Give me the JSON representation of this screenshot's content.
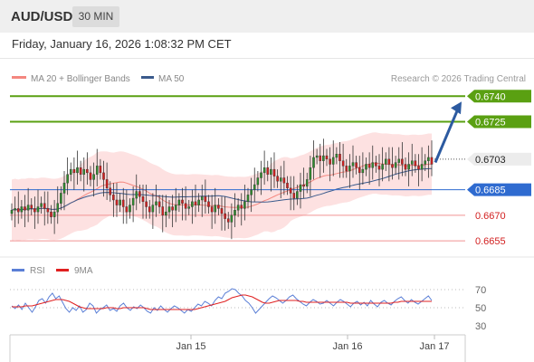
{
  "header": {
    "symbol": "AUD/USD",
    "timeframe": "30 MIN"
  },
  "datetime": "Friday, January 16, 2026 1:08:32 PM CET",
  "legend": {
    "ma20": {
      "label": "MA 20 + Bollinger Bands",
      "color": "#f4877f"
    },
    "ma50": {
      "label": "MA 50",
      "color": "#3a5a8c"
    }
  },
  "copyright": "Research © 2026 Trading Central",
  "rsi_legend": {
    "rsi": {
      "label": "RSI",
      "color": "#5b7fd6"
    },
    "ma9": {
      "label": "9MA",
      "color": "#e02020"
    }
  },
  "colors": {
    "up": "#2e8b2e",
    "down": "#d21f1f",
    "resistance": "#5aa012",
    "support": "#2f6bd0",
    "support_light": "#f19393",
    "arrow": "#2c5aa0",
    "band_fill": "#fde1e1"
  },
  "chart_data": [
    {
      "type": "candlestick",
      "ylim": [
        0.6646,
        0.6746
      ],
      "x_tick_labels": [
        "Jan 15",
        "Jan 16",
        "Jan 17"
      ],
      "price_levels": [
        {
          "value": 0.674,
          "label": "0.6740",
          "style": "resistance"
        },
        {
          "value": 0.6725,
          "label": "0.6725",
          "style": "resistance"
        },
        {
          "value": 0.6703,
          "label": "0.6703",
          "style": "current"
        },
        {
          "value": 0.6685,
          "label": "0.6685",
          "style": "support"
        },
        {
          "value": 0.667,
          "label": "0.6670",
          "style": "support_light"
        },
        {
          "value": 0.6655,
          "label": "0.6655",
          "style": "support_light"
        }
      ],
      "ohlc_close": [
        0.6673,
        0.6674,
        0.6672,
        0.6675,
        0.6673,
        0.6676,
        0.6674,
        0.6672,
        0.6675,
        0.6677,
        0.6674,
        0.6672,
        0.6669,
        0.6672,
        0.6677,
        0.6683,
        0.6689,
        0.6694,
        0.6697,
        0.6695,
        0.6698,
        0.6694,
        0.6697,
        0.6695,
        0.6691,
        0.6694,
        0.6699,
        0.6695,
        0.6691,
        0.6686,
        0.6682,
        0.6679,
        0.6676,
        0.6679,
        0.6675,
        0.6672,
        0.6676,
        0.668,
        0.6684,
        0.6681,
        0.6678,
        0.6675,
        0.6672,
        0.6676,
        0.6678,
        0.6675,
        0.667,
        0.6672,
        0.6675,
        0.6673,
        0.6676,
        0.6679,
        0.6677,
        0.6674,
        0.6675,
        0.6678,
        0.6676,
        0.6679,
        0.6681,
        0.6678,
        0.6675,
        0.6672,
        0.6676,
        0.6674,
        0.6671,
        0.6668,
        0.6666,
        0.667,
        0.6673,
        0.6676,
        0.6674,
        0.6678,
        0.6682,
        0.6685,
        0.6688,
        0.6692,
        0.6695,
        0.6698,
        0.6694,
        0.6697,
        0.6693,
        0.669,
        0.6692,
        0.6689,
        0.6686,
        0.6683,
        0.668,
        0.6684,
        0.6688,
        0.6687,
        0.6691,
        0.6698,
        0.6704,
        0.6705,
        0.6702,
        0.6705,
        0.6703,
        0.67,
        0.6704,
        0.6706,
        0.6702,
        0.6699,
        0.6696,
        0.6699,
        0.6701,
        0.6698,
        0.6695,
        0.6697,
        0.67,
        0.6698,
        0.6701,
        0.6699,
        0.6697,
        0.67,
        0.6703,
        0.67,
        0.6698,
        0.6701,
        0.6703,
        0.67,
        0.6697,
        0.67,
        0.6702,
        0.6699,
        0.6697,
        0.67,
        0.6702,
        0.6704,
        0.67
      ],
      "ma50_color": "#3a5a8c",
      "forecast_arrow_target": 0.674
    },
    {
      "type": "line",
      "name": "RSI panel",
      "y_tick_labels": [
        "70",
        "50",
        "30"
      ],
      "ylim": [
        20,
        80
      ],
      "series": [
        {
          "name": "RSI",
          "values": [
            52,
            49,
            53,
            48,
            55,
            50,
            45,
            51,
            58,
            60,
            55,
            62,
            66,
            60,
            63,
            56,
            49,
            45,
            50,
            47,
            52,
            45,
            48,
            55,
            52,
            44,
            48,
            50,
            53,
            47,
            49,
            46,
            52,
            55,
            50,
            47,
            51,
            49,
            53,
            50,
            46,
            44,
            50,
            47,
            52,
            48,
            45,
            49,
            52,
            50,
            47,
            44,
            48,
            46,
            50,
            54,
            52,
            57,
            55,
            52,
            58,
            62,
            60,
            66,
            68,
            71,
            70,
            66,
            63,
            58,
            55,
            50,
            44,
            48,
            52,
            56,
            60,
            63,
            61,
            58,
            55,
            58,
            62,
            64,
            60,
            57,
            54,
            52,
            56,
            59,
            57,
            54,
            55,
            58,
            55,
            52,
            56,
            59,
            57,
            54,
            51,
            55,
            57,
            53,
            56,
            52,
            58,
            54,
            51,
            56,
            58,
            55,
            53,
            57,
            60,
            62,
            58,
            55,
            59,
            56,
            54,
            57,
            60,
            63,
            58
          ]
        },
        {
          "name": "9MA",
          "values": [
            51,
            51,
            51,
            51,
            52,
            52,
            52,
            53,
            54,
            55,
            56,
            57,
            58,
            59,
            59,
            59,
            58,
            57,
            55,
            53,
            51,
            50,
            49,
            49,
            49,
            49,
            49,
            49,
            50,
            50,
            50,
            49,
            49,
            50,
            50,
            50,
            50,
            50,
            50,
            50,
            49,
            48,
            48,
            48,
            48,
            48,
            48,
            48,
            48,
            48,
            48,
            48,
            48,
            48,
            48,
            49,
            50,
            51,
            52,
            53,
            54,
            55,
            56,
            57,
            59,
            61,
            62,
            63,
            64,
            64,
            63,
            62,
            60,
            58,
            56,
            55,
            55,
            56,
            57,
            58,
            58,
            58,
            58,
            58,
            58,
            57,
            57,
            56,
            56,
            56,
            56,
            56,
            56,
            56,
            56,
            56,
            56,
            56,
            56,
            56,
            55,
            55,
            55,
            55,
            55,
            55,
            55,
            55,
            55,
            55,
            55,
            55,
            55,
            56,
            56,
            57,
            57,
            57,
            57,
            57,
            57,
            57,
            57,
            57,
            57
          ]
        }
      ]
    }
  ]
}
